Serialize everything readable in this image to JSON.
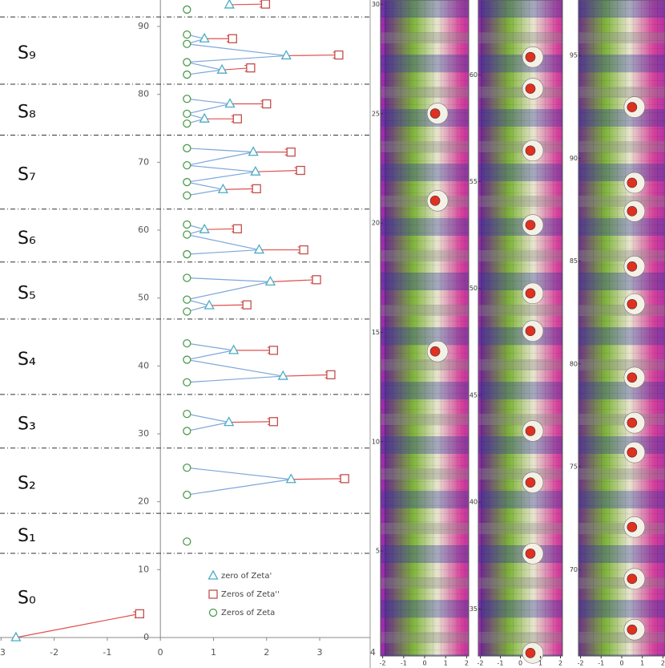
{
  "chart_data": {
    "type": "scatter",
    "xlim": [
      -3.02,
      3.95
    ],
    "ylim": [
      0,
      93.9
    ],
    "xticks": [
      -3,
      -2,
      -1,
      0,
      1,
      2,
      3,
      4
    ],
    "yticks": [
      0,
      10,
      20,
      30,
      40,
      50,
      60,
      70,
      80,
      90
    ],
    "regions": [
      "S₀",
      "S₁",
      "S₂",
      "S₃",
      "S₄",
      "S₅",
      "S₆",
      "S₇",
      "S₈",
      "S₉"
    ],
    "separators": [
      12.4,
      18.3,
      27.9,
      35.8,
      46.9,
      55.3,
      63.1,
      74.0,
      81.5,
      91.4
    ],
    "link_color": "#7da7d9",
    "series": [
      {
        "name": "zero of Zeta'",
        "marker": "triangle",
        "color": "#4bacc6",
        "x": [
          -2.72,
          2.46,
          1.29,
          2.31,
          1.38,
          0.92,
          2.07,
          1.86,
          0.83,
          1.18,
          1.79,
          1.75,
          0.83,
          1.31,
          1.16,
          2.37,
          0.83,
          1.3
        ],
        "values": [
          0,
          23.3,
          31.7,
          38.5,
          42.3,
          48.9,
          52.4,
          57.1,
          60.1,
          66.0,
          68.6,
          71.5,
          76.4,
          78.6,
          83.6,
          85.7,
          88.2,
          93.2
        ]
      },
      {
        "name": "Zeros of Zeta''",
        "marker": "square",
        "color": "#c0504d",
        "x": [
          -0.39,
          3.47,
          2.13,
          3.21,
          2.13,
          1.63,
          2.94,
          2.7,
          1.45,
          1.81,
          2.64,
          2.46,
          1.45,
          2.0,
          1.7,
          3.36,
          1.36,
          1.98
        ],
        "values": [
          3.5,
          23.4,
          31.8,
          38.7,
          42.3,
          49.0,
          52.7,
          57.1,
          60.2,
          66.1,
          68.8,
          71.5,
          76.4,
          78.6,
          83.9,
          85.8,
          88.2,
          93.3
        ]
      },
      {
        "name": "Zeros of Zeta",
        "marker": "circle",
        "color": "#4e9a4e",
        "x": [
          0.5,
          0.5,
          0.5,
          0.5,
          0.5,
          0.5,
          0.5,
          0.5,
          0.5,
          0.5,
          0.5,
          0.5,
          0.5,
          0.5,
          0.5,
          0.5,
          0.5,
          0.5,
          0.5,
          0.5,
          0.5,
          0.5,
          0.5,
          0.5,
          0.5,
          0.5
        ],
        "values": [
          14.13,
          21.02,
          25.01,
          30.42,
          32.94,
          37.59,
          40.92,
          43.33,
          48.01,
          49.77,
          52.97,
          56.45,
          59.35,
          60.83,
          65.11,
          67.08,
          69.55,
          72.07,
          75.7,
          77.14,
          79.34,
          82.91,
          84.74,
          87.43,
          88.81,
          92.49
        ]
      }
    ]
  },
  "domain_plots": [
    {
      "xlim": [
        -2.1,
        2.1
      ],
      "ylim": [
        0.2,
        30.2
      ],
      "xticks": [
        -2,
        -1,
        0,
        1,
        2
      ],
      "yticks": [
        5,
        10,
        15,
        20,
        25,
        30
      ]
    },
    {
      "xlim": [
        -2.1,
        2.1
      ],
      "ylim": [
        32.8,
        63.5
      ],
      "xticks": [
        -2,
        -1,
        0,
        1,
        2
      ],
      "yticks": [
        35,
        40,
        45,
        50,
        55,
        60
      ]
    },
    {
      "xlim": [
        -2.1,
        2.1
      ],
      "ylim": [
        65.8,
        97.7
      ],
      "xticks": [
        -2,
        -1,
        0,
        1,
        2
      ],
      "yticks": [
        70,
        75,
        80,
        85,
        90,
        95
      ]
    }
  ]
}
